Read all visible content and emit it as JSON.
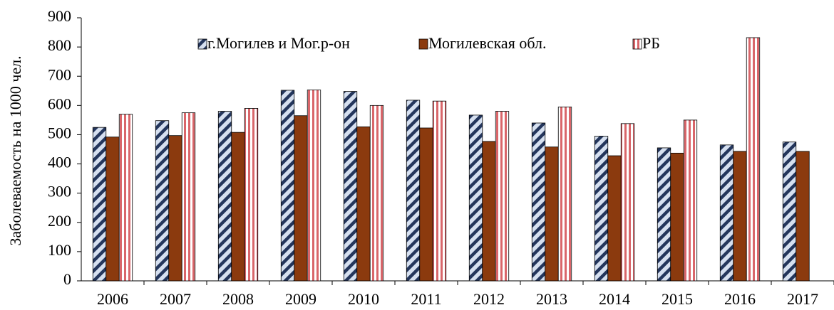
{
  "chart_data": {
    "type": "bar",
    "ylabel": "Заболеваемость на 1000 чел.",
    "categories": [
      "2006",
      "2007",
      "2008",
      "2009",
      "2010",
      "2011",
      "2012",
      "2013",
      "2014",
      "2015",
      "2016",
      "2017"
    ],
    "series": [
      {
        "name": "г.Могилев и Мог.р-он",
        "color": "#24365c",
        "values": [
          525,
          548,
          580,
          652,
          648,
          618,
          567,
          540,
          495,
          455,
          465,
          475
        ]
      },
      {
        "name": "Могилевская обл.",
        "color": "#8b3a0e",
        "values": [
          492,
          497,
          508,
          565,
          527,
          523,
          477,
          458,
          428,
          437,
          443,
          443
        ]
      },
      {
        "name": "РБ",
        "color": "#d9666a",
        "values": [
          570,
          575,
          590,
          653,
          600,
          615,
          580,
          595,
          538,
          550,
          832,
          null
        ]
      }
    ],
    "ylim": [
      0,
      900
    ],
    "yticks": [
      0,
      100,
      200,
      300,
      400,
      500,
      600,
      700,
      800,
      900
    ],
    "grid": false,
    "legend": "top"
  }
}
